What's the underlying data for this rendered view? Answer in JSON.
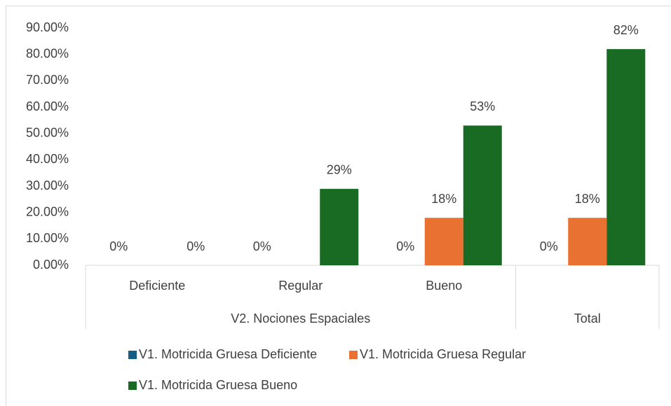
{
  "chart_data": {
    "type": "bar",
    "groups": [
      {
        "name": "V2. Nociones Espaciales",
        "categories": [
          "Deficiente",
          "Regular",
          "Bueno"
        ]
      },
      {
        "name": "Total",
        "categories": []
      }
    ],
    "series": [
      {
        "name": "V1. Motricida Gruesa Deficiente",
        "color": "#156082",
        "values": [
          0,
          0,
          0,
          0
        ],
        "value_labels": [
          "0%",
          "0%",
          "0%",
          "0%"
        ]
      },
      {
        "name": "V1. Motricida Gruesa Regular",
        "color": "#e97132",
        "values": [
          null,
          null,
          18,
          18
        ],
        "value_labels": [
          null,
          null,
          "18%",
          "18%"
        ]
      },
      {
        "name": "V1. Motricida Gruesa Bueno",
        "color": "#196b24",
        "values": [
          0,
          29,
          53,
          82
        ],
        "value_labels": [
          "0%",
          "29%",
          "53%",
          "82%"
        ]
      }
    ],
    "ylim": [
      0,
      90
    ],
    "yticks": [
      {
        "value": 0,
        "label": "0.00%"
      },
      {
        "value": 10,
        "label": "10.00%"
      },
      {
        "value": 20,
        "label": "20.00%"
      },
      {
        "value": 30,
        "label": "30.00%"
      },
      {
        "value": 40,
        "label": "40.00%"
      },
      {
        "value": 50,
        "label": "50.00%"
      },
      {
        "value": 60,
        "label": "60.00%"
      },
      {
        "value": 70,
        "label": "70.00%"
      },
      {
        "value": 80,
        "label": "80.00%"
      },
      {
        "value": 90,
        "label": "90.00%"
      }
    ],
    "grid": false,
    "legend": "bottom"
  }
}
